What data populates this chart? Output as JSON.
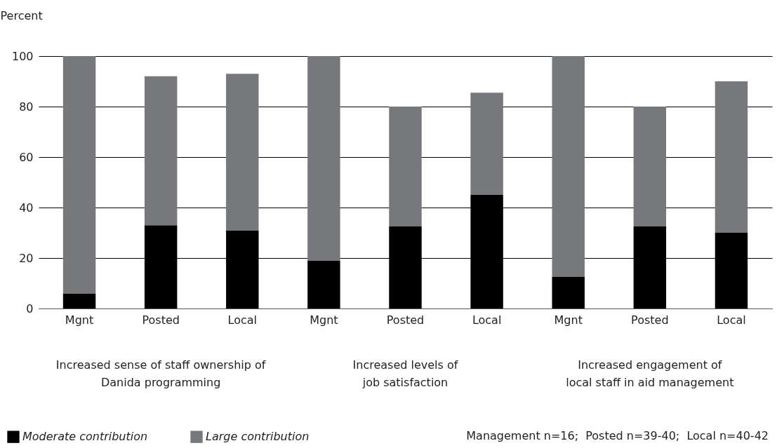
{
  "chart_data": {
    "type": "bar",
    "stacked": true,
    "ylabel": "Percent",
    "categories": [
      "Mgnt",
      "Posted",
      "Local",
      "Mgnt",
      "Posted",
      "Local",
      "Mgnt",
      "Posted",
      "Local"
    ],
    "series": [
      {
        "name": "Moderate contribution",
        "color": "#000000",
        "values": [
          6,
          33,
          31,
          19,
          32.5,
          45,
          12.5,
          32.5,
          30
        ]
      },
      {
        "name": "Large contribution",
        "color": "#77787b",
        "values": [
          94,
          59,
          62,
          81,
          47.5,
          40.5,
          87.5,
          47.5,
          60
        ]
      }
    ],
    "ylim": [
      0,
      100
    ],
    "yticks": [
      0,
      20,
      40,
      60,
      80,
      100
    ],
    "grid": "y",
    "legend": "bottom left",
    "annotations": [
      "Increased sense of staff ownership of\nDanida programming",
      "Increased levels of\njob satisfaction",
      "Increased engagement of\nlocal staff in aid management",
      "Management n=16;  Posted n=39-40;  Local n=40-42"
    ]
  }
}
